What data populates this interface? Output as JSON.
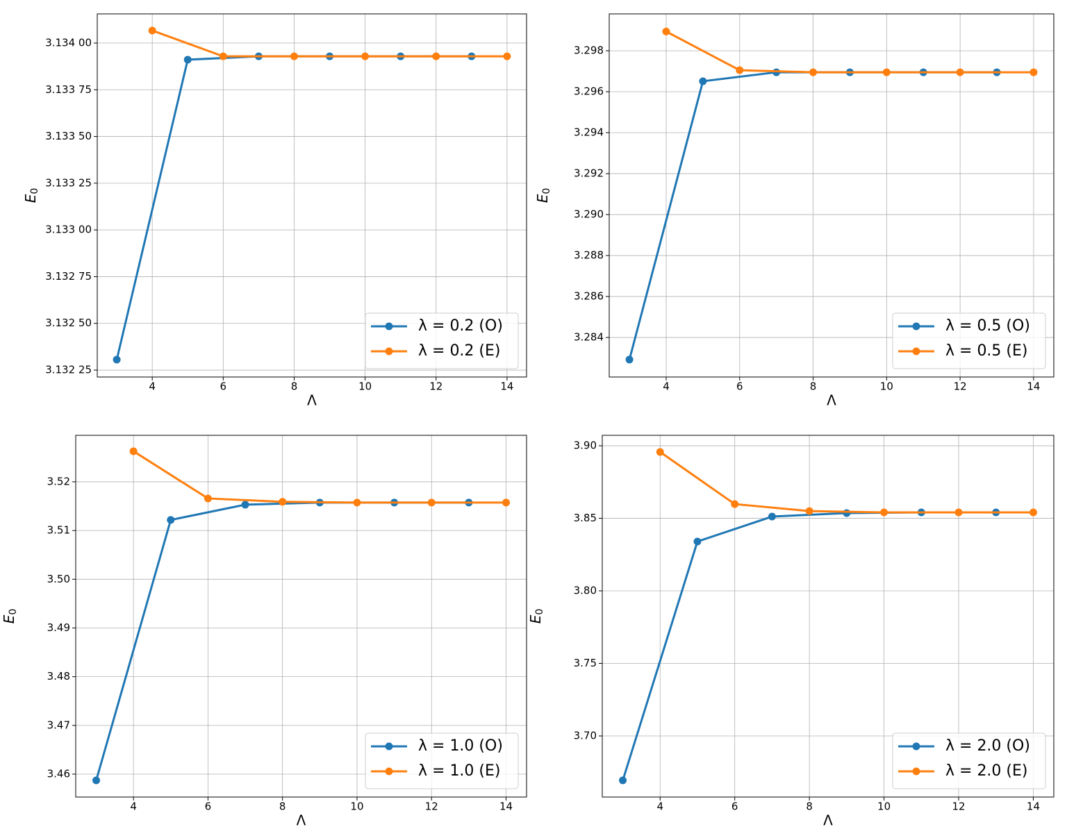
{
  "chart_data": [
    {
      "type": "line",
      "xlabel": "Λ",
      "ylabel": {
        "text": "E",
        "subscript": "0"
      },
      "xlim": [
        2.45,
        14.55
      ],
      "xticks": [
        4,
        6,
        8,
        10,
        12,
        14
      ],
      "ylim": [
        3.132213,
        3.134156
      ],
      "yticks": [
        {
          "value": 3.13225,
          "label": "3.132 25"
        },
        {
          "value": 3.1325,
          "label": "3.132 50"
        },
        {
          "value": 3.13275,
          "label": "3.132 75"
        },
        {
          "value": 3.133,
          "label": "3.133 00"
        },
        {
          "value": 3.13325,
          "label": "3.133 25"
        },
        {
          "value": 3.1335,
          "label": "3.133 50"
        },
        {
          "value": 3.13375,
          "label": "3.133 75"
        },
        {
          "value": 3.134,
          "label": "3.134 00"
        }
      ],
      "grid": true,
      "legend": "lower right",
      "series": [
        {
          "name": "λ = 0.2 (O)",
          "color": "#1f77b4",
          "x": [
            3,
            5,
            7,
            9,
            11,
            13
          ],
          "values": [
            3.132306,
            3.133911,
            3.133929,
            3.133929,
            3.133929,
            3.133929
          ]
        },
        {
          "name": "λ = 0.2 (E)",
          "color": "#ff7f0e",
          "x": [
            4,
            6,
            8,
            10,
            12,
            14
          ],
          "values": [
            3.134067,
            3.133929,
            3.133929,
            3.133929,
            3.133929,
            3.133929
          ]
        }
      ]
    },
    {
      "type": "line",
      "xlabel": "Λ",
      "ylabel": {
        "text": "E",
        "subscript": "0"
      },
      "xlim": [
        2.45,
        14.55
      ],
      "xticks": [
        4,
        6,
        8,
        10,
        12,
        14
      ],
      "ylim": [
        3.28207,
        3.2998
      ],
      "yticks": [
        3.284,
        3.286,
        3.288,
        {
          "value": 3.29,
          "label": "3.290"
        },
        3.292,
        3.294,
        3.296,
        3.298
      ],
      "grid": true,
      "legend": "lower right",
      "series": [
        {
          "name": "λ = 0.5 (O)",
          "color": "#1f77b4",
          "x": [
            3,
            5,
            7,
            9,
            11,
            13
          ],
          "values": [
            3.28292,
            3.29651,
            3.29695,
            3.29695,
            3.29695,
            3.29695
          ]
        },
        {
          "name": "λ = 0.5 (E)",
          "color": "#ff7f0e",
          "x": [
            4,
            6,
            8,
            10,
            12,
            14
          ],
          "values": [
            3.29894,
            3.29705,
            3.29695,
            3.29695,
            3.29695,
            3.29695
          ]
        }
      ]
    },
    {
      "type": "line",
      "xlabel": "Λ",
      "ylabel": {
        "text": "E",
        "subscript": "0"
      },
      "xlim": [
        2.45,
        14.55
      ],
      "xticks": [
        4,
        6,
        8,
        10,
        12,
        14
      ],
      "ylim": [
        3.4553,
        3.52954
      ],
      "yticks": [
        3.46,
        3.47,
        3.48,
        3.49,
        {
          "value": 3.5,
          "label": "3.50"
        },
        3.51,
        3.52
      ],
      "grid": true,
      "legend": "lower right",
      "series": [
        {
          "name": "λ = 1.0 (O)",
          "color": "#1f77b4",
          "x": [
            3,
            5,
            7,
            9,
            11,
            13
          ],
          "values": [
            3.45872,
            3.51217,
            3.5153,
            3.51573,
            3.51573,
            3.51573
          ]
        },
        {
          "name": "λ = 1.0 (E)",
          "color": "#ff7f0e",
          "x": [
            4,
            6,
            8,
            10,
            12,
            14
          ],
          "values": [
            3.52627,
            3.51658,
            3.5159,
            3.51573,
            3.51573,
            3.51573
          ]
        }
      ]
    },
    {
      "type": "line",
      "xlabel": "Λ",
      "ylabel": {
        "text": "E",
        "subscript": "0"
      },
      "xlim": [
        2.45,
        14.55
      ],
      "xticks": [
        4,
        6,
        8,
        10,
        12,
        14
      ],
      "ylim": [
        3.6579,
        3.9072
      ],
      "yticks": [
        {
          "value": 3.7,
          "label": "3.70"
        },
        3.75,
        {
          "value": 3.8,
          "label": "3.80"
        },
        3.85,
        {
          "value": 3.9,
          "label": "3.90"
        }
      ],
      "grid": true,
      "legend": "lower right",
      "series": [
        {
          "name": "λ = 2.0 (O)",
          "color": "#1f77b4",
          "x": [
            3,
            5,
            7,
            9,
            11,
            13
          ],
          "values": [
            3.6694,
            3.834,
            3.8512,
            3.8536,
            3.8541,
            3.8541
          ]
        },
        {
          "name": "λ = 2.0 (E)",
          "color": "#ff7f0e",
          "x": [
            4,
            6,
            8,
            10,
            12,
            14
          ],
          "values": [
            3.8957,
            3.8598,
            3.855,
            3.8541,
            3.8541,
            3.8541
          ]
        }
      ]
    }
  ]
}
